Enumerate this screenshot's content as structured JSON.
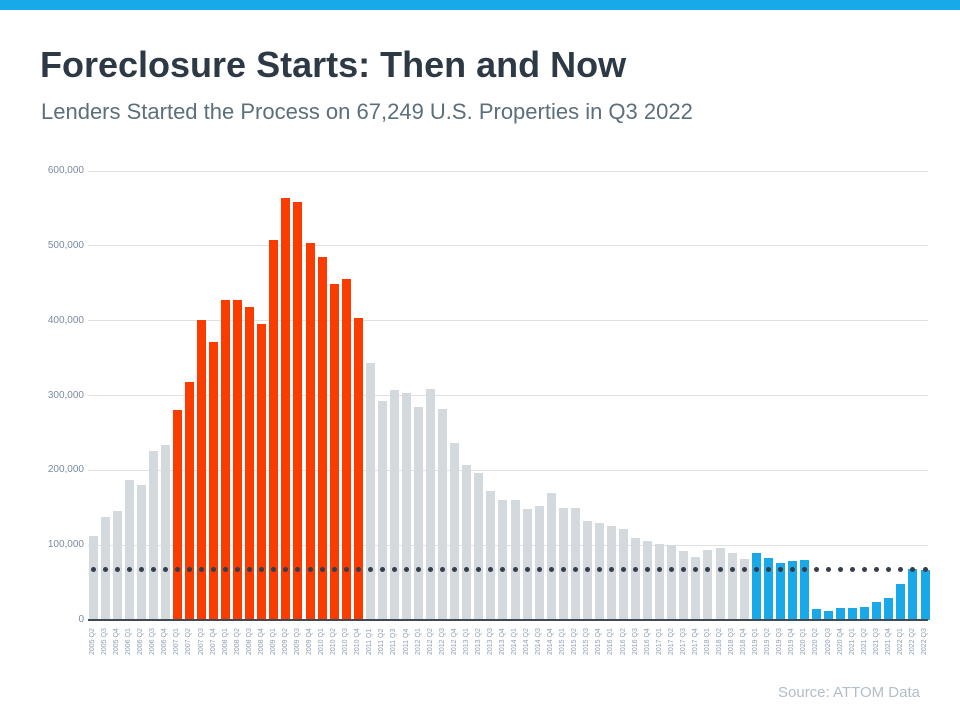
{
  "page": {
    "title": "Foreclosure Starts: Then and Now",
    "subtitle": "Lenders Started the Process on 67,249 U.S. Properties in Q3 2022",
    "source": "Source: ATTOM Data"
  },
  "colors": {
    "banner": "#18a9e8",
    "title": "#2d3a45",
    "subtitle": "#5c6f7b",
    "source": "#b2bec6",
    "bar_gray": "#d3d9dc",
    "bar_red": "#fa3c00",
    "bar_blue": "#1aa9e8",
    "dot": "#333d4b",
    "gridline": "#e1e1e1",
    "axis_line": "#3f4a54",
    "y_label": "#7b8ba1",
    "x_label": "#8fa0b5"
  },
  "chart_data": {
    "type": "bar",
    "title": "Foreclosure Starts: Then and Now",
    "subtitle": "Lenders Started the Process on 67,249 U.S. Properties in Q3 2022",
    "xlabel": "",
    "ylabel": "",
    "ylim": [
      0,
      620000
    ],
    "grid": true,
    "legend": false,
    "y_ticks": [
      {
        "value": 0,
        "label": "0"
      },
      {
        "value": 100000,
        "label": "100,000"
      },
      {
        "value": 200000,
        "label": "200,000"
      },
      {
        "value": 300000,
        "label": "300,000"
      },
      {
        "value": 400000,
        "label": "400,000"
      },
      {
        "value": 500000,
        "label": "500,000"
      },
      {
        "value": 600000,
        "label": "600,000"
      }
    ],
    "reference_line": {
      "style": "dotted",
      "value": 67249,
      "meaning": "Q3 2022 level of 67,249 foreclosure starts"
    },
    "color_segments": [
      {
        "color_key": "bar_gray",
        "from": "2005 Q2",
        "to": "2006 Q4",
        "start_index": 0,
        "end_index": 6
      },
      {
        "color_key": "bar_red",
        "from": "2007 Q1",
        "to": "2010 Q4",
        "start_index": 7,
        "end_index": 22
      },
      {
        "color_key": "bar_gray",
        "from": "2011 Q1",
        "to": "2018 Q4",
        "start_index": 23,
        "end_index": 54
      },
      {
        "color_key": "bar_blue",
        "from": "2019 Q1",
        "to": "2022 Q3",
        "start_index": 55,
        "end_index": 69
      }
    ],
    "categories": [
      "2005 Q2",
      "2005 Q3",
      "2005 Q4",
      "2006 Q1",
      "2006 Q2",
      "2006 Q3",
      "2006 Q4",
      "2007 Q1",
      "2007 Q2",
      "2007 Q3",
      "2007 Q4",
      "2008 Q1",
      "2008 Q2",
      "2008 Q3",
      "2008 Q4",
      "2009 Q1",
      "2009 Q2",
      "2009 Q3",
      "2009 Q4",
      "2010 Q1",
      "2010 Q2",
      "2010 Q3",
      "2010 Q4",
      "2011 Q1",
      "2011 Q2",
      "2011 Q3",
      "2011 Q4",
      "2012 Q1",
      "2012 Q2",
      "2012 Q3",
      "2012 Q4",
      "2013 Q1",
      "2013 Q2",
      "2013 Q3",
      "2013 Q4",
      "2014 Q1",
      "2014 Q2",
      "2014 Q3",
      "2014 Q4",
      "2015 Q1",
      "2015 Q2",
      "2015 Q3",
      "2015 Q4",
      "2016 Q1",
      "2016 Q2",
      "2016 Q3",
      "2016 Q4",
      "2017 Q1",
      "2017 Q2",
      "2017 Q3",
      "2017 Q4",
      "2018 Q1",
      "2018 Q2",
      "2018 Q3",
      "2018 Q4",
      "2019 Q1",
      "2019 Q2",
      "2019 Q3",
      "2019 Q4",
      "2020 Q1",
      "2020 Q2",
      "2020 Q3",
      "2020 Q4",
      "2021 Q1",
      "2021 Q2",
      "2021 Q3",
      "2021 Q4",
      "2022 Q1",
      "2022 Q2",
      "2022 Q3"
    ],
    "values": [
      112000,
      138000,
      145000,
      187000,
      181000,
      226000,
      234000,
      280000,
      318000,
      401000,
      371000,
      428000,
      427000,
      418000,
      396000,
      508000,
      564000,
      558000,
      504000,
      485000,
      449000,
      456000,
      404000,
      344000,
      292000,
      308000,
      304000,
      285000,
      309000,
      282000,
      237000,
      207000,
      196000,
      173000,
      161000,
      161000,
      148000,
      152000,
      170000,
      150000,
      149000,
      132000,
      129000,
      125000,
      121000,
      110000,
      106000,
      102000,
      100000,
      92000,
      84000,
      93000,
      96000,
      89000,
      82000,
      89000,
      83000,
      76000,
      79000,
      80000,
      15000,
      12000,
      16000,
      16000,
      17000,
      24000,
      29000,
      48000,
      68000,
      67249
    ]
  }
}
